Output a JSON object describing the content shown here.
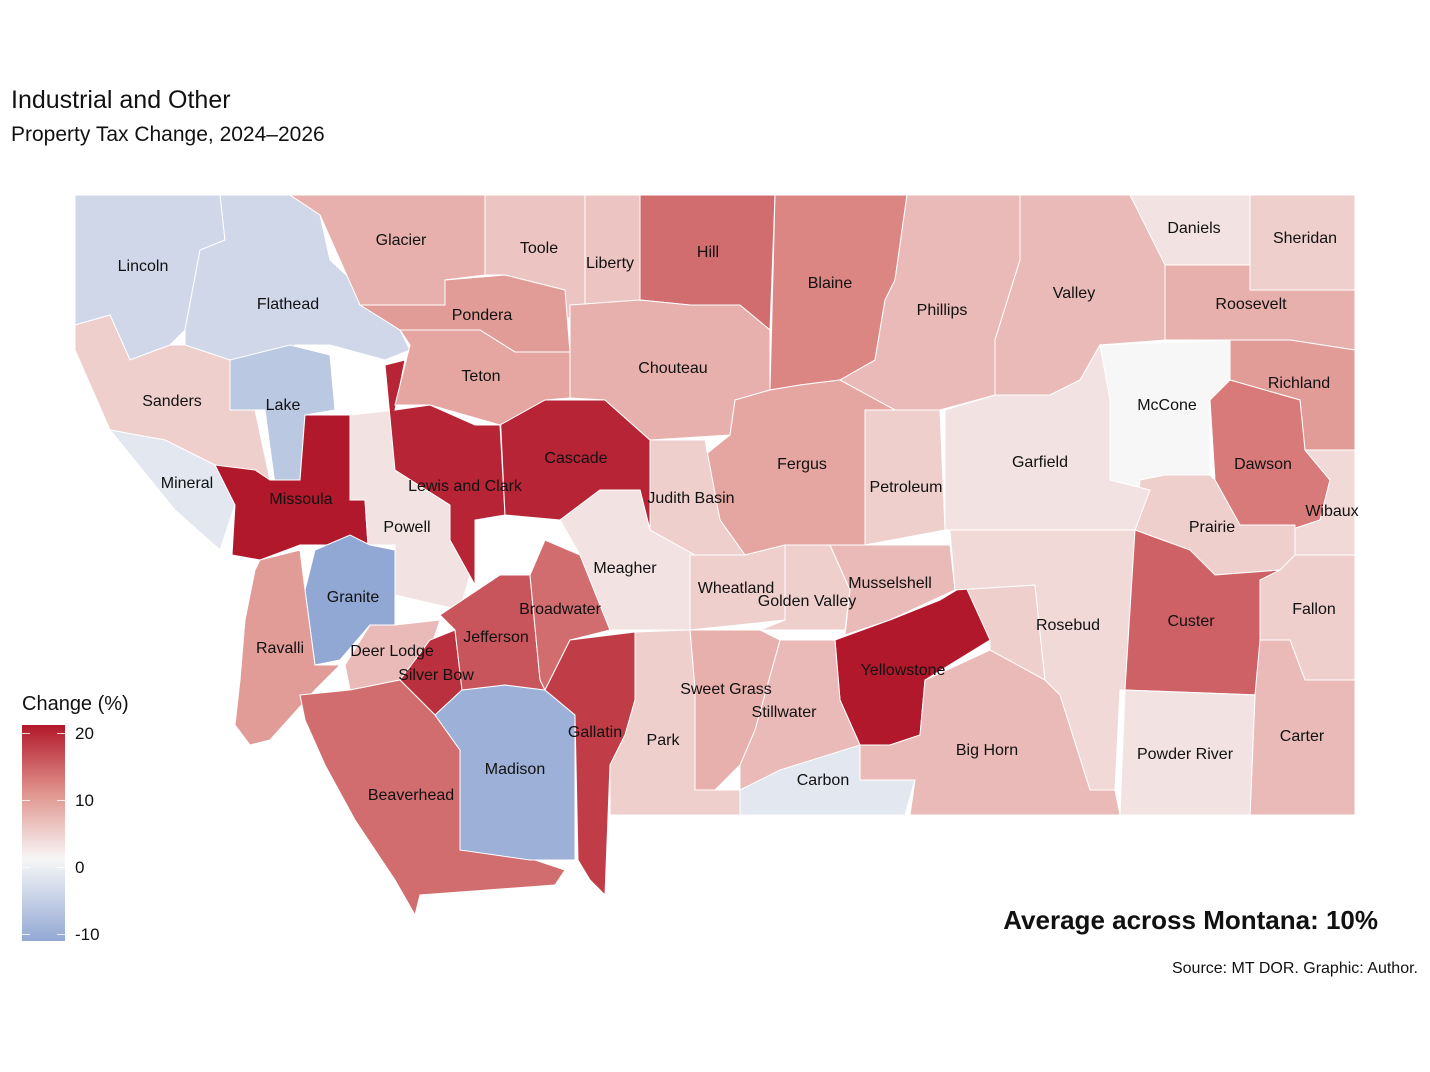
{
  "title": "Industrial and Other",
  "subtitle": "Property Tax Change, 2024–2026",
  "legend": {
    "title": "Change (%)",
    "ticks": [
      "20",
      "10",
      "0",
      "-10"
    ],
    "range": [
      -11,
      21
    ],
    "colors": {
      "high": "#b2182b",
      "mid": "#f7f7f7",
      "low": "#92a8d4"
    }
  },
  "annotation": "Average across Montana: 10%",
  "source": "Source: MT DOR. Graphic: Author.",
  "counties": [
    {
      "name": "Lincoln",
      "value": -4
    },
    {
      "name": "Flathead",
      "value": -4
    },
    {
      "name": "Lake",
      "value": -6
    },
    {
      "name": "Sanders",
      "value": 4
    },
    {
      "name": "Mineral",
      "value": -2
    },
    {
      "name": "Missoula",
      "value": 20
    },
    {
      "name": "Powell",
      "value": 2
    },
    {
      "name": "Granite",
      "value": -10
    },
    {
      "name": "Ravalli",
      "value": 9
    },
    {
      "name": "Deer Lodge",
      "value": 6
    },
    {
      "name": "Silver Bow",
      "value": 18
    },
    {
      "name": "Beaverhead",
      "value": 13
    },
    {
      "name": "Madison",
      "value": -9
    },
    {
      "name": "Jefferson",
      "value": 15
    },
    {
      "name": "Lewis and Clark",
      "value": 19
    },
    {
      "name": "Cascade",
      "value": 19
    },
    {
      "name": "Broadwater",
      "value": 13
    },
    {
      "name": "Gallatin",
      "value": 17
    },
    {
      "name": "Glacier",
      "value": 7
    },
    {
      "name": "Toole",
      "value": 5
    },
    {
      "name": "Liberty",
      "value": 5
    },
    {
      "name": "Pondera",
      "value": 9
    },
    {
      "name": "Teton",
      "value": 8
    },
    {
      "name": "Hill",
      "value": 13
    },
    {
      "name": "Chouteau",
      "value": 7
    },
    {
      "name": "Blaine",
      "value": 11
    },
    {
      "name": "Phillips",
      "value": 6
    },
    {
      "name": "Valley",
      "value": 6
    },
    {
      "name": "Daniels",
      "value": 2
    },
    {
      "name": "Sheridan",
      "value": 4
    },
    {
      "name": "Roosevelt",
      "value": 7
    },
    {
      "name": "McCone",
      "value": 0
    },
    {
      "name": "Richland",
      "value": 9
    },
    {
      "name": "Dawson",
      "value": 12
    },
    {
      "name": "Wibaux",
      "value": 3
    },
    {
      "name": "Prairie",
      "value": 4
    },
    {
      "name": "Garfield",
      "value": 2
    },
    {
      "name": "Petroleum",
      "value": 4
    },
    {
      "name": "Fergus",
      "value": 8
    },
    {
      "name": "Judith Basin",
      "value": 4
    },
    {
      "name": "Meagher",
      "value": 2
    },
    {
      "name": "Wheatland",
      "value": 4
    },
    {
      "name": "Golden Valley",
      "value": 4
    },
    {
      "name": "Musselshell",
      "value": 6
    },
    {
      "name": "Yellowstone",
      "value": 21
    },
    {
      "name": "Rosebud",
      "value": 3
    },
    {
      "name": "Custer",
      "value": 14
    },
    {
      "name": "Fallon",
      "value": 4
    },
    {
      "name": "Carter",
      "value": 6
    },
    {
      "name": "Powder River",
      "value": 2
    },
    {
      "name": "Big Horn",
      "value": 6
    },
    {
      "name": "Carbon",
      "value": -2
    },
    {
      "name": "Stillwater",
      "value": 6
    },
    {
      "name": "Sweet Grass",
      "value": 7
    },
    {
      "name": "Park",
      "value": 4
    }
  ]
}
